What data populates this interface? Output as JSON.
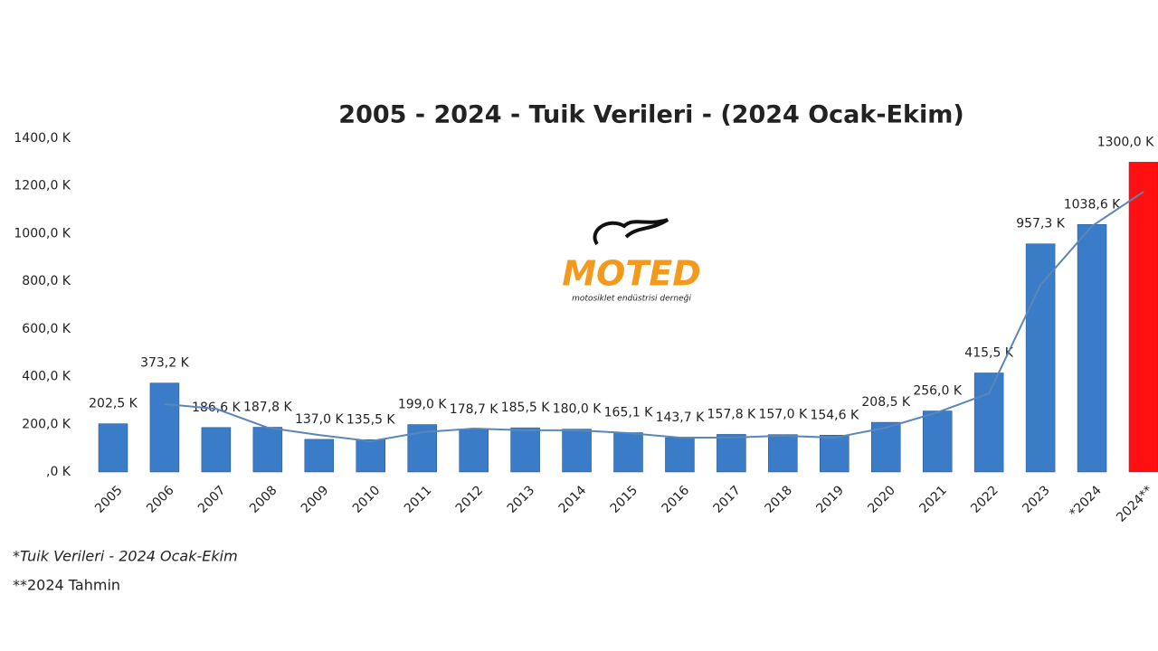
{
  "chart_data": {
    "type": "bar",
    "title": "2005 - 2024 - Tuik Verileri - (2024 Ocak-Ekim)",
    "categories": [
      "2005",
      "2006",
      "2007",
      "2008",
      "2009",
      "2010",
      "2011",
      "2012",
      "2013",
      "2014",
      "2015",
      "2016",
      "2017",
      "2018",
      "2019",
      "2020",
      "2021",
      "2022",
      "2023",
      "*2024",
      "2024**"
    ],
    "values": [
      202.5,
      373.2,
      186.6,
      187.8,
      137.0,
      135.5,
      199.0,
      178.7,
      185.5,
      180.0,
      165.1,
      143.7,
      157.8,
      157.0,
      154.6,
      208.5,
      256.0,
      415.5,
      957.3,
      1038.6,
      1300.0
    ],
    "value_labels": [
      "202,5 K",
      "373,2 K",
      "186,6 K",
      "187,8 K",
      "137,0 K",
      "135,5 K",
      "199,0 K",
      "178,7 K",
      "185,5 K",
      "180,0 K",
      "165,1 K",
      "143,7 K",
      "157,8 K",
      "157,0 K",
      "154,6 K",
      "208,5 K",
      "256,0 K",
      "415,5 K",
      "957,3 K",
      "1038,6 K",
      "1300,0 K"
    ],
    "colors": [
      "#3a7cc8",
      "#3a7cc8",
      "#3a7cc8",
      "#3a7cc8",
      "#3a7cc8",
      "#3a7cc8",
      "#3a7cc8",
      "#3a7cc8",
      "#3a7cc8",
      "#3a7cc8",
      "#3a7cc8",
      "#3a7cc8",
      "#3a7cc8",
      "#3a7cc8",
      "#3a7cc8",
      "#3a7cc8",
      "#3a7cc8",
      "#3a7cc8",
      "#3a7cc8",
      "#3a7cc8",
      "#ff1010"
    ],
    "trend": {
      "color": "#5a86b8",
      "values": [
        null,
        285,
        265,
        186,
        155,
        129,
        167,
        182,
        175,
        175,
        163,
        144,
        144,
        152,
        144,
        186,
        250,
        330,
        785,
        1032,
        1176
      ]
    },
    "ylim": [
      0,
      1400
    ],
    "yticks": [
      {
        "value": 0,
        "label": ",0 K"
      },
      {
        "value": 200,
        "label": "200,0 K"
      },
      {
        "value": 400,
        "label": "400,0 K"
      },
      {
        "value": 600,
        "label": "600,0 K"
      },
      {
        "value": 800,
        "label": "800,0 K"
      },
      {
        "value": 1000,
        "label": "1000,0 K"
      },
      {
        "value": 1200,
        "label": "1200,0 K"
      },
      {
        "value": 1400,
        "label": "1400,0 K"
      }
    ],
    "grid": false,
    "logo": {
      "name": "MOTED",
      "tagline": "motosiklet endüstrisi derneği"
    },
    "footnotes": [
      "*Tuik Verileri - 2024 Ocak-Ekim",
      "**2024 Tahmin"
    ]
  }
}
